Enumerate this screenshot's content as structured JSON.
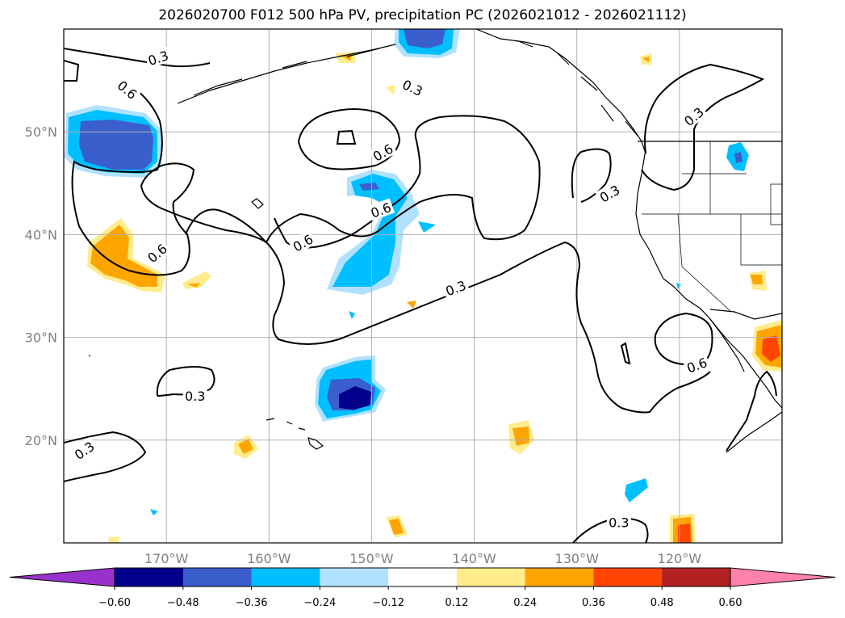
{
  "title": "2026020700 F012 500 hPa PV, precipitation PC (2026021012 - 2026021112)",
  "map": {
    "lon_range": [
      -180,
      -110
    ],
    "lat_range": [
      10,
      60
    ],
    "lon_labels": [
      {
        "lon": -170,
        "text": "170°W"
      },
      {
        "lon": -160,
        "text": "160°W"
      },
      {
        "lon": -150,
        "text": "150°W"
      },
      {
        "lon": -140,
        "text": "140°W"
      },
      {
        "lon": -130,
        "text": "130°W"
      },
      {
        "lon": -120,
        "text": "120°W"
      }
    ],
    "lat_labels": [
      {
        "lat": 50,
        "text": "50°N"
      },
      {
        "lat": 40,
        "text": "40°N"
      },
      {
        "lat": 30,
        "text": "30°N"
      },
      {
        "lat": 20,
        "text": "20°N"
      }
    ],
    "contour_labels": [
      {
        "text": "0.3",
        "lon": -170.8,
        "lat": 57.2,
        "angle": -18
      },
      {
        "text": "0.6",
        "lon": -173.8,
        "lat": 54.1,
        "angle": 40
      },
      {
        "text": "0.3",
        "lon": -146.0,
        "lat": 54.3,
        "angle": 25
      },
      {
        "text": "0.6",
        "lon": -148.9,
        "lat": 48.0,
        "angle": -30
      },
      {
        "text": "0.6",
        "lon": -149.1,
        "lat": 42.4,
        "angle": -20
      },
      {
        "text": "0.6",
        "lon": -156.7,
        "lat": 39.2,
        "angle": -30
      },
      {
        "text": "0.6",
        "lon": -170.9,
        "lat": 38.2,
        "angle": -40
      },
      {
        "text": "0.3",
        "lon": -178.0,
        "lat": 19.0,
        "angle": -35
      },
      {
        "text": "0.3",
        "lon": -167.2,
        "lat": 24.3,
        "angle": 0
      },
      {
        "text": "0.3",
        "lon": -141.8,
        "lat": 34.8,
        "angle": -20
      },
      {
        "text": "0.3",
        "lon": -118.6,
        "lat": 51.5,
        "angle": -40
      },
      {
        "text": "0.3",
        "lon": -126.8,
        "lat": 44.0,
        "angle": -30
      },
      {
        "text": "0.6",
        "lon": -118.3,
        "lat": 27.3,
        "angle": -20
      },
      {
        "text": "0.3",
        "lon": -125.9,
        "lat": 12.0,
        "angle": 0
      }
    ]
  },
  "colorbar": {
    "ticks": [
      "−0.60",
      "−0.48",
      "−0.36",
      "−0.24",
      "−0.12",
      "0.12",
      "0.24",
      "0.36",
      "0.48",
      "0.60"
    ],
    "colors": [
      "#9932cc",
      "#00008b",
      "#3a5fcd",
      "#00bfff",
      "#b0e2ff",
      "#ffffff",
      "#ffec8b",
      "#ffa500",
      "#ff4500",
      "#b22222",
      "#ff82ab"
    ]
  },
  "precip_colors": {
    "neg_light": "#b0e2ff",
    "neg_mid": "#00bfff",
    "neg_dark": "#3a5fcd",
    "neg_darkest": "#00008b",
    "pos_light": "#ffec8b",
    "pos_mid": "#ffa500",
    "pos_dark": "#ff4500"
  }
}
